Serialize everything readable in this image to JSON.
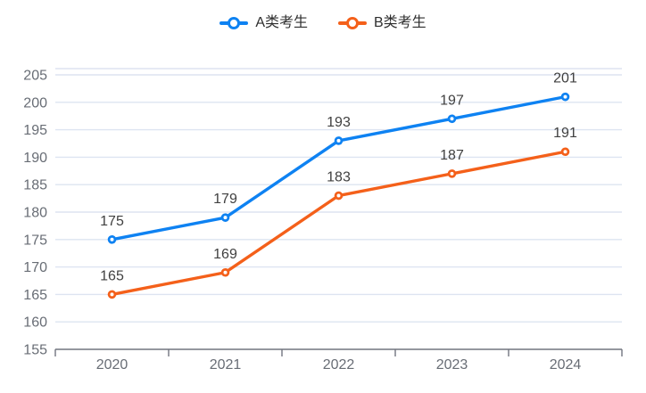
{
  "chart_data": {
    "type": "line",
    "title": "",
    "categories": [
      "2020",
      "2021",
      "2022",
      "2023",
      "2024"
    ],
    "series": [
      {
        "name": "A类考生",
        "color": "#0e82f2",
        "values": [
          175,
          179,
          193,
          197,
          201
        ]
      },
      {
        "name": "B类考生",
        "color": "#f4601a",
        "values": [
          165,
          169,
          183,
          187,
          191
        ]
      }
    ],
    "yticks": [
      155,
      160,
      165,
      170,
      175,
      180,
      185,
      190,
      195,
      200,
      205
    ],
    "ylim": [
      155,
      205
    ],
    "ytick_step": 5,
    "grid": true,
    "legend_position": "top-center",
    "marker": "hollow-circle",
    "data_labels": true
  },
  "colors": {
    "series_a": "#0e82f2",
    "series_b": "#f4601a",
    "gridline": "#dde4f1",
    "axis_line": "#71757f",
    "axis_label": "#686d75",
    "data_label": "#404040",
    "legend_text": "#2e2e2e",
    "background": "#ffffff"
  }
}
